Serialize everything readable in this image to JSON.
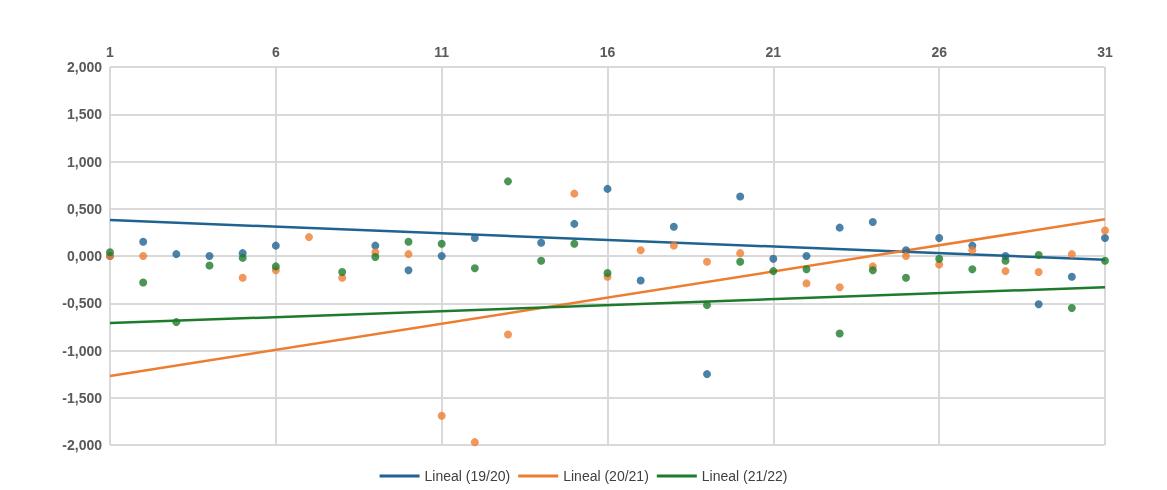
{
  "chart_data": {
    "type": "scatter",
    "x": [
      1,
      2,
      3,
      4,
      5,
      6,
      7,
      8,
      9,
      10,
      11,
      12,
      13,
      14,
      15,
      16,
      17,
      18,
      19,
      20,
      21,
      22,
      23,
      24,
      25,
      26,
      27,
      28,
      29,
      30,
      31
    ],
    "series": [
      {
        "color": "#1f6391",
        "values": [
          0,
          0.15,
          0.02,
          0,
          0.03,
          0.11,
          null,
          null,
          0.11,
          -0.15,
          0,
          0.19,
          null,
          0.14,
          0.34,
          0.71,
          -0.26,
          0.31,
          -1.25,
          0.63,
          -0.03,
          0,
          0.3,
          0.36,
          0.06,
          0.19,
          0.11,
          0,
          -0.51,
          -0.22,
          0.19
        ]
      },
      {
        "color": "#ed7d31",
        "values": [
          0,
          0,
          null,
          null,
          -0.23,
          -0.15,
          0.2,
          -0.23,
          0.04,
          0.02,
          -1.69,
          -1.97,
          -0.83,
          null,
          0.66,
          -0.22,
          0.06,
          0.11,
          -0.06,
          0.03,
          null,
          -0.29,
          -0.33,
          -0.11,
          0,
          -0.09,
          0.06,
          -0.16,
          -0.17,
          0.02,
          0.27
        ]
      },
      {
        "color": "#1e7b2a",
        "values": [
          0.04,
          -0.28,
          -0.7,
          -0.1,
          -0.02,
          -0.11,
          null,
          -0.17,
          -0.01,
          0.15,
          0.13,
          -0.13,
          0.79,
          -0.05,
          0.13,
          -0.18,
          null,
          null,
          -0.52,
          -0.06,
          -0.16,
          -0.14,
          -0.82,
          -0.15,
          -0.23,
          -0.03,
          -0.14,
          -0.05,
          0.01,
          -0.55,
          -0.05
        ]
      },
      {
        "type": "line",
        "name": "Lineal (19/20)",
        "color": "#1f6391",
        "marker": "none",
        "values": [
          0.38,
          null,
          null,
          null,
          null,
          null,
          null,
          null,
          null,
          null,
          null,
          null,
          null,
          null,
          null,
          null,
          null,
          null,
          null,
          null,
          null,
          null,
          null,
          null,
          null,
          null,
          null,
          null,
          null,
          null,
          -0.04
        ]
      },
      {
        "type": "line",
        "name": "Lineal (20/21)",
        "color": "#ed7d31",
        "marker": "none",
        "values": [
          -1.27,
          null,
          null,
          null,
          null,
          null,
          null,
          null,
          null,
          null,
          null,
          null,
          null,
          null,
          null,
          null,
          null,
          null,
          null,
          null,
          null,
          null,
          null,
          null,
          null,
          null,
          null,
          null,
          null,
          null,
          0.39
        ]
      },
      {
        "type": "line",
        "name": "Lineal (21/22)",
        "color": "#1e7b2a",
        "marker": "none",
        "values": [
          -0.71,
          null,
          null,
          null,
          null,
          null,
          null,
          null,
          null,
          null,
          null,
          null,
          null,
          null,
          null,
          null,
          null,
          null,
          null,
          null,
          null,
          null,
          null,
          null,
          null,
          null,
          null,
          null,
          null,
          null,
          -0.33
        ]
      }
    ],
    "xlim": [
      1,
      31
    ],
    "xticks": [
      1,
      6,
      11,
      16,
      21,
      26,
      31
    ],
    "ylim": [
      -2,
      2
    ],
    "yticks": [
      {
        "value": -2,
        "label": "-2,000"
      },
      {
        "value": -1.5,
        "label": "-1,500"
      },
      {
        "value": -1,
        "label": "-1,000"
      },
      {
        "value": -0.5,
        "label": "-0,500"
      },
      {
        "value": 0,
        "label": "0,000"
      },
      {
        "value": 0.5,
        "label": "0,500"
      },
      {
        "value": 1,
        "label": "1,000"
      },
      {
        "value": 1.5,
        "label": "1,500"
      },
      {
        "value": 2,
        "label": "2,000"
      }
    ],
    "grid": true,
    "legend": "bottom",
    "marker": "circle",
    "line_style": "solid"
  }
}
